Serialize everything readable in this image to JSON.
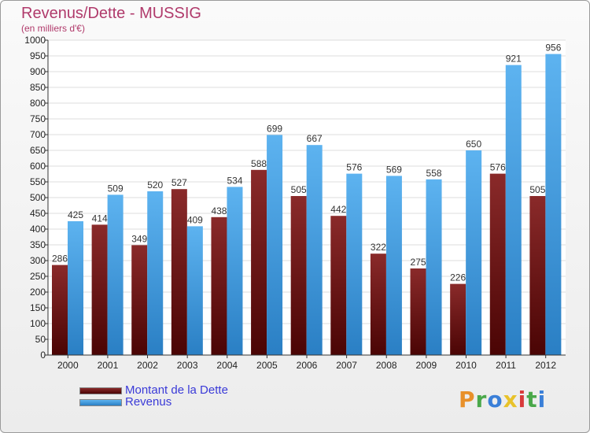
{
  "title": "Revenus/Dette - MUSSIG",
  "subtitle": "(en milliers d'€)",
  "colors": {
    "dette": "#6e1616",
    "revenus": "#4da3e6"
  },
  "legend": [
    {
      "label": "Montant de la Dette",
      "color": "#6e1616"
    },
    {
      "label": "Revenus",
      "color": "#4da3e6"
    }
  ],
  "logo": {
    "text": "Proxiti",
    "icon": "proxiti-logo"
  },
  "chart_data": {
    "type": "bar",
    "categories": [
      "2000",
      "2001",
      "2002",
      "2003",
      "2004",
      "2005",
      "2006",
      "2007",
      "2008",
      "2009",
      "2010",
      "2011",
      "2012"
    ],
    "series": [
      {
        "name": "Montant de la Dette",
        "values": [
          286,
          414,
          349,
          527,
          438,
          588,
          505,
          442,
          322,
          275,
          226,
          576,
          505
        ]
      },
      {
        "name": "Revenus",
        "values": [
          425,
          509,
          520,
          409,
          534,
          699,
          667,
          576,
          569,
          558,
          650,
          921,
          956
        ]
      }
    ],
    "ylim": [
      0,
      1000
    ],
    "yticks": [
      0,
      50,
      100,
      150,
      200,
      250,
      300,
      350,
      400,
      450,
      500,
      550,
      600,
      650,
      700,
      750,
      800,
      850,
      900,
      950,
      1000
    ],
    "grid": true,
    "legend_position": "bottom-left"
  }
}
